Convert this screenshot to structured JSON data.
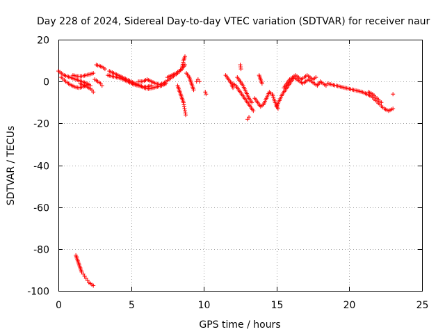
{
  "chart_data": {
    "type": "scatter",
    "title": "Day 228 of 2024, Sidereal Day-to-day VTEC variation (SDTVAR) for receiver naur",
    "xlabel": "GPS time / hours",
    "ylabel": "SDTVAR / TECUs",
    "xlim": [
      0,
      25
    ],
    "ylim": [
      -100,
      20
    ],
    "xticks": [
      "0",
      "5",
      "10",
      "15",
      "20",
      "25"
    ],
    "yticks": [
      "20",
      "0",
      "-20",
      "-40",
      "-60",
      "-80",
      "-100"
    ],
    "grid": true,
    "marker": "plus",
    "color": "#ff0000",
    "series": [
      {
        "name": "SDTVAR",
        "segments": [
          [
            [
              0.0,
              5
            ],
            [
              0.2,
              4
            ],
            [
              0.4,
              3
            ],
            [
              0.6,
              2.5
            ],
            [
              0.8,
              2
            ],
            [
              1.0,
              1.5
            ],
            [
              1.2,
              1
            ],
            [
              1.4,
              0.5
            ],
            [
              1.6,
              0
            ],
            [
              1.8,
              -0.5
            ],
            [
              2.0,
              -1
            ],
            [
              2.2,
              -2
            ]
          ],
          [
            [
              0.2,
              2
            ],
            [
              0.5,
              0
            ],
            [
              0.8,
              -1.5
            ],
            [
              1.1,
              -2.5
            ],
            [
              1.4,
              -3
            ],
            [
              1.7,
              -2.5
            ],
            [
              2.0,
              -1.5
            ]
          ],
          [
            [
              1.0,
              3
            ],
            [
              1.3,
              2.5
            ],
            [
              1.6,
              2.5
            ],
            [
              1.9,
              3
            ],
            [
              2.2,
              3.5
            ],
            [
              2.4,
              4
            ]
          ],
          [
            [
              1.5,
              -1
            ],
            [
              1.8,
              -2
            ],
            [
              2.1,
              -3
            ],
            [
              2.3,
              -4
            ],
            [
              2.4,
              -5
            ]
          ],
          [
            [
              2.5,
              1
            ],
            [
              2.7,
              0
            ],
            [
              2.9,
              -1
            ],
            [
              3.0,
              -2
            ]
          ],
          [
            [
              2.6,
              8
            ],
            [
              2.8,
              7.5
            ],
            [
              3.0,
              7
            ],
            [
              3.2,
              6
            ]
          ],
          [
            [
              3.5,
              5
            ],
            [
              3.8,
              4
            ],
            [
              4.1,
              3
            ],
            [
              4.4,
              2
            ],
            [
              4.7,
              1
            ],
            [
              5.0,
              0
            ],
            [
              5.3,
              -1
            ],
            [
              5.6,
              -2
            ],
            [
              5.9,
              -3
            ],
            [
              6.2,
              -3.5
            ],
            [
              6.5,
              -3
            ],
            [
              6.8,
              -2.5
            ],
            [
              7.1,
              -2
            ],
            [
              7.4,
              -1
            ]
          ],
          [
            [
              3.4,
              3
            ],
            [
              3.7,
              2.5
            ],
            [
              4.0,
              2
            ],
            [
              4.3,
              1.5
            ],
            [
              4.6,
              0.5
            ],
            [
              4.9,
              -0.5
            ],
            [
              5.2,
              -1.5
            ],
            [
              5.5,
              -2
            ],
            [
              5.8,
              -2.5
            ],
            [
              6.1,
              -2.5
            ],
            [
              6.4,
              -2
            ]
          ],
          [
            [
              5.5,
              0
            ],
            [
              5.8,
              0
            ],
            [
              6.1,
              1
            ],
            [
              6.4,
              0
            ],
            [
              6.7,
              -1
            ],
            [
              7.0,
              -1.5
            ],
            [
              7.3,
              -0.5
            ],
            [
              7.6,
              1
            ],
            [
              7.9,
              2.5
            ],
            [
              8.2,
              4
            ],
            [
              8.5,
              6
            ],
            [
              8.7,
              8
            ]
          ],
          [
            [
              7.5,
              2
            ],
            [
              7.8,
              3
            ],
            [
              8.1,
              4
            ],
            [
              8.3,
              5
            ],
            [
              8.5,
              6.5
            ],
            [
              8.6,
              10
            ],
            [
              8.7,
              12
            ]
          ],
          [
            [
              8.2,
              -2
            ],
            [
              8.3,
              -4
            ],
            [
              8.4,
              -6
            ],
            [
              8.5,
              -8
            ],
            [
              8.6,
              -10
            ],
            [
              8.65,
              -12
            ],
            [
              8.7,
              -14
            ],
            [
              8.75,
              -16
            ]
          ],
          [
            [
              8.8,
              4
            ],
            [
              9.0,
              2
            ],
            [
              9.1,
              0
            ],
            [
              9.2,
              -2
            ],
            [
              9.3,
              -4
            ]
          ],
          [
            [
              9.5,
              0
            ],
            [
              9.6,
              1
            ],
            [
              9.7,
              0
            ]
          ],
          [
            [
              10.1,
              -5
            ],
            [
              10.15,
              -6
            ]
          ],
          [
            [
              11.5,
              3
            ],
            [
              11.7,
              1
            ],
            [
              11.9,
              -1
            ],
            [
              12.0,
              -3
            ]
          ],
          [
            [
              12.0,
              -1
            ],
            [
              12.2,
              -2
            ],
            [
              12.4,
              -4
            ],
            [
              12.6,
              -6
            ],
            [
              12.8,
              -8
            ],
            [
              13.0,
              -10
            ],
            [
              13.2,
              -12
            ],
            [
              13.4,
              -14
            ]
          ],
          [
            [
              12.3,
              2
            ],
            [
              12.5,
              0
            ],
            [
              12.7,
              -2
            ],
            [
              12.9,
              -5
            ],
            [
              13.1,
              -8
            ],
            [
              13.3,
              -10
            ]
          ],
          [
            [
              12.5,
              8
            ],
            [
              12.55,
              6
            ]
          ],
          [
            [
              13.0,
              -18
            ],
            [
              13.1,
              -17
            ]
          ],
          [
            [
              13.5,
              -8
            ],
            [
              13.7,
              -10
            ],
            [
              13.9,
              -12
            ],
            [
              14.1,
              -11
            ],
            [
              14.3,
              -8
            ],
            [
              14.5,
              -5
            ],
            [
              14.7,
              -6
            ],
            [
              14.9,
              -10
            ],
            [
              15.1,
              -13
            ]
          ],
          [
            [
              13.8,
              3
            ],
            [
              13.9,
              1
            ],
            [
              14.0,
              -1
            ]
          ],
          [
            [
              15.0,
              -12
            ],
            [
              15.2,
              -9
            ],
            [
              15.4,
              -6
            ],
            [
              15.6,
              -4
            ],
            [
              15.8,
              -2
            ],
            [
              16.0,
              0
            ],
            [
              16.2,
              2
            ],
            [
              16.4,
              1
            ],
            [
              16.6,
              0
            ],
            [
              16.8,
              -1
            ],
            [
              17.0,
              0
            ],
            [
              17.2,
              1
            ],
            [
              17.4,
              0
            ],
            [
              17.6,
              -1
            ],
            [
              17.8,
              -2
            ],
            [
              18.0,
              0
            ],
            [
              18.2,
              -1
            ],
            [
              18.4,
              -2
            ]
          ],
          [
            [
              15.5,
              -3
            ],
            [
              15.7,
              -1
            ],
            [
              15.9,
              1
            ],
            [
              16.1,
              2
            ],
            [
              16.3,
              3
            ],
            [
              16.5,
              2
            ],
            [
              16.7,
              1
            ],
            [
              16.9,
              2
            ],
            [
              17.1,
              3
            ],
            [
              17.3,
              2
            ],
            [
              17.5,
              1
            ],
            [
              17.7,
              2
            ]
          ],
          [
            [
              18.5,
              -1
            ],
            [
              18.8,
              -1.5
            ],
            [
              19.1,
              -2
            ],
            [
              19.4,
              -2.5
            ],
            [
              19.7,
              -3
            ],
            [
              20.0,
              -3.5
            ],
            [
              20.3,
              -4
            ],
            [
              20.6,
              -4.5
            ],
            [
              20.9,
              -5
            ],
            [
              21.2,
              -6
            ],
            [
              21.5,
              -7
            ],
            [
              21.8,
              -9
            ],
            [
              22.1,
              -11
            ],
            [
              22.4,
              -13
            ],
            [
              22.7,
              -14
            ],
            [
              23.0,
              -13
            ]
          ],
          [
            [
              21.3,
              -5
            ],
            [
              21.6,
              -6
            ],
            [
              21.9,
              -8
            ],
            [
              22.2,
              -10
            ]
          ],
          [
            [
              23.0,
              -6
            ]
          ],
          [
            [
              1.2,
              -83
            ],
            [
              1.3,
              -85
            ],
            [
              1.4,
              -87
            ],
            [
              1.5,
              -89
            ],
            [
              1.6,
              -91
            ],
            [
              1.7,
              -92
            ],
            [
              1.8,
              -93
            ],
            [
              1.9,
              -94
            ],
            [
              2.0,
              -95
            ],
            [
              2.1,
              -96
            ],
            [
              2.2,
              -96.5
            ],
            [
              2.3,
              -97
            ],
            [
              2.4,
              -97.5
            ]
          ]
        ]
      }
    ]
  }
}
